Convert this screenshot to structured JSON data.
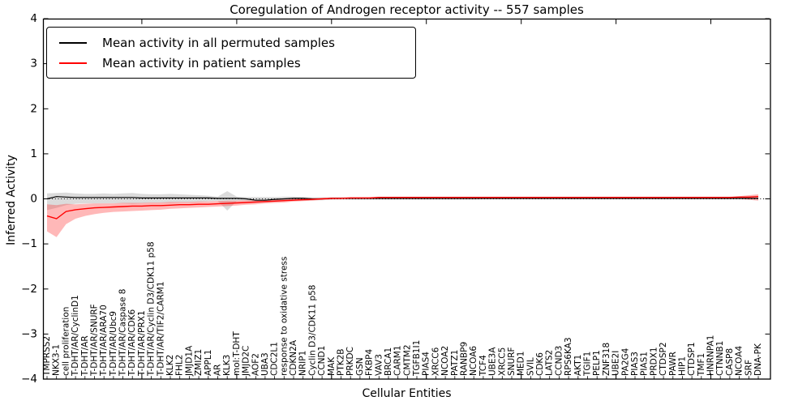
{
  "chart_data": {
    "type": "line",
    "title": "Coregulation of Androgen receptor activity -- 557 samples",
    "xlabel": "Cellular Entities",
    "ylabel": "Inferred Activity",
    "ylim": [
      -4,
      4
    ],
    "yticks": [
      4,
      3,
      2,
      1,
      0,
      -1,
      -2,
      -3,
      -4
    ],
    "x_major_tick_every": 10,
    "grid": false,
    "zero_line_style": "dotted",
    "legend_position": "upper left",
    "categories": [
      "TMPRSS2",
      "NKX3-1",
      "cell proliferation",
      "T-DHT/AR/CyclinD1",
      "T-DHT/AR",
      "T-DHT/AR/SNURF",
      "T-DHT/AR/ARA70",
      "T-DHT/AR/Ubc9",
      "T-DHT/AR/Caspase 8",
      "T-DHT/AR/CDK6",
      "T-DHT/AR/PRX1",
      "T-DHT/AR/Cyclin D3/CDK11 p58",
      "T-DHT/AR/TIF2/CARM1",
      "KLK2",
      "FHL2",
      "JMJD1A",
      "ZMIZ1",
      "APPL1",
      "AR",
      "KLK3",
      "mol:T-DHT",
      "JMJD2C",
      "AOF2",
      "UBA3",
      "CDC2L1",
      "response to oxidative stress",
      "CDKN2A",
      "NRIP1",
      "Cyclin D3/CDK11 p58",
      "CCND1",
      "MAK",
      "PTK2B",
      "PRKDC",
      "GSN",
      "FKBP4",
      "VAV3",
      "BRCA1",
      "CARM1",
      "CMTM2",
      "TGFB1I1",
      "PIAS4",
      "XRCC6",
      "NCOA2",
      "PATZ1",
      "RANBP9",
      "NCOA6",
      "TCF4",
      "UBE3A",
      "XRCC5",
      "SNURF",
      "MED1",
      "SVIL",
      "CDK6",
      "LATS2",
      "CCND3",
      "RPS6KA3",
      "AKT1",
      "TGIF1",
      "PELP1",
      "ZNF318",
      "UBE2I",
      "PA2G4",
      "PIAS3",
      "PIAS1",
      "PRDX1",
      "CTDSP2",
      "PAWR",
      "HIP1",
      "CTDSP1",
      "TMF1",
      "HNRNPA1",
      "CTNNB1",
      "CASP8",
      "NCOA4",
      "SRF",
      "DNA-PK"
    ],
    "series": [
      {
        "key": "permuted",
        "name": "Mean activity in all permuted samples",
        "color": "#000000",
        "band_color": "#999999",
        "band_opacity": 0.35,
        "values": [
          0.0,
          0.05,
          0.04,
          0.03,
          0.03,
          0.03,
          0.03,
          0.03,
          0.03,
          0.03,
          0.02,
          0.02,
          0.02,
          0.02,
          0.02,
          0.02,
          0.02,
          0.02,
          0.01,
          0.01,
          0.01,
          0.0,
          -0.03,
          -0.03,
          -0.01,
          0.0,
          0.01,
          0.01,
          0.0,
          0.0,
          0.01,
          0.01,
          0.01,
          0.01,
          0.01,
          0.01,
          0.01,
          0.01,
          0.01,
          0.01,
          0.01,
          0.01,
          0.01,
          0.01,
          0.01,
          0.01,
          0.01,
          0.01,
          0.01,
          0.01,
          0.01,
          0.01,
          0.01,
          0.01,
          0.01,
          0.01,
          0.01,
          0.01,
          0.01,
          0.01,
          0.01,
          0.01,
          0.01,
          0.01,
          0.01,
          0.01,
          0.01,
          0.01,
          0.01,
          0.01,
          0.01,
          0.01,
          0.01,
          0.01,
          0.01,
          0.01
        ],
        "band_upper": [
          0.12,
          0.13,
          0.14,
          0.12,
          0.11,
          0.11,
          0.12,
          0.11,
          0.12,
          0.13,
          0.11,
          0.1,
          0.1,
          0.11,
          0.1,
          0.09,
          0.08,
          0.07,
          0.05,
          0.17,
          0.05,
          0.04,
          0.04,
          0.04,
          0.04,
          0.05,
          0.05,
          0.04,
          0.03,
          0.03,
          0.03,
          0.03,
          0.03,
          0.03,
          0.03,
          0.03,
          0.03,
          0.03,
          0.03,
          0.03,
          0.03,
          0.03,
          0.03,
          0.03,
          0.03,
          0.03,
          0.02,
          0.02,
          0.02,
          0.02,
          0.02,
          0.02,
          0.02,
          0.02,
          0.02,
          0.02,
          0.02,
          0.02,
          0.02,
          0.02,
          0.02,
          0.02,
          0.02,
          0.02,
          0.02,
          0.02,
          0.02,
          0.02,
          0.02,
          0.02,
          0.02,
          0.02,
          0.02,
          0.02,
          0.02,
          0.02
        ],
        "band_lower": [
          -0.25,
          -0.2,
          -0.14,
          -0.11,
          -0.1,
          -0.1,
          -0.1,
          -0.1,
          -0.1,
          -0.11,
          -0.1,
          -0.09,
          -0.09,
          -0.09,
          -0.08,
          -0.08,
          -0.07,
          -0.06,
          -0.05,
          -0.26,
          -0.05,
          -0.05,
          -0.06,
          -0.05,
          -0.04,
          -0.04,
          -0.04,
          -0.04,
          -0.03,
          -0.03,
          -0.02,
          -0.02,
          -0.02,
          -0.02,
          -0.02,
          -0.02,
          -0.02,
          -0.02,
          -0.02,
          -0.02,
          -0.02,
          -0.02,
          -0.02,
          -0.02,
          -0.02,
          -0.02,
          -0.01,
          -0.01,
          -0.01,
          -0.01,
          -0.01,
          -0.01,
          -0.01,
          -0.01,
          -0.01,
          -0.01,
          -0.01,
          -0.01,
          -0.01,
          -0.01,
          -0.01,
          -0.01,
          -0.01,
          -0.01,
          -0.01,
          -0.01,
          -0.01,
          -0.01,
          -0.01,
          -0.01,
          -0.01,
          -0.01,
          -0.01,
          -0.01,
          -0.01,
          -0.01
        ]
      },
      {
        "key": "patient",
        "name": "Mean activity in patient samples",
        "color": "#ff0000",
        "band_color": "#ff3333",
        "band_opacity": 0.35,
        "values": [
          -0.38,
          -0.44,
          -0.28,
          -0.24,
          -0.22,
          -0.2,
          -0.19,
          -0.18,
          -0.17,
          -0.16,
          -0.16,
          -0.15,
          -0.15,
          -0.14,
          -0.13,
          -0.13,
          -0.12,
          -0.12,
          -0.11,
          -0.1,
          -0.09,
          -0.08,
          -0.07,
          -0.06,
          -0.05,
          -0.04,
          -0.03,
          -0.02,
          -0.01,
          0.0,
          0.01,
          0.01,
          0.02,
          0.02,
          0.02,
          0.03,
          0.03,
          0.03,
          0.03,
          0.03,
          0.03,
          0.03,
          0.03,
          0.03,
          0.03,
          0.03,
          0.03,
          0.03,
          0.03,
          0.03,
          0.03,
          0.03,
          0.03,
          0.03,
          0.03,
          0.03,
          0.03,
          0.03,
          0.03,
          0.03,
          0.03,
          0.03,
          0.03,
          0.03,
          0.03,
          0.03,
          0.03,
          0.03,
          0.03,
          0.03,
          0.03,
          0.03,
          0.03,
          0.04,
          0.04,
          0.05
        ],
        "band_upper": [
          -0.12,
          -0.14,
          -0.11,
          -0.12,
          -0.11,
          -0.1,
          -0.1,
          -0.1,
          -0.09,
          -0.09,
          -0.09,
          -0.08,
          -0.08,
          -0.07,
          -0.07,
          -0.07,
          -0.06,
          -0.06,
          -0.05,
          -0.04,
          -0.04,
          -0.03,
          -0.03,
          -0.02,
          -0.02,
          -0.01,
          0.0,
          0.01,
          0.01,
          0.02,
          0.03,
          0.03,
          0.04,
          0.04,
          0.04,
          0.05,
          0.05,
          0.05,
          0.05,
          0.05,
          0.05,
          0.05,
          0.05,
          0.05,
          0.05,
          0.05,
          0.05,
          0.05,
          0.05,
          0.05,
          0.05,
          0.05,
          0.05,
          0.05,
          0.05,
          0.05,
          0.05,
          0.05,
          0.05,
          0.05,
          0.05,
          0.05,
          0.05,
          0.05,
          0.05,
          0.05,
          0.05,
          0.05,
          0.05,
          0.05,
          0.05,
          0.05,
          0.05,
          0.06,
          0.08,
          0.1
        ],
        "band_lower": [
          -0.72,
          -0.85,
          -0.56,
          -0.44,
          -0.38,
          -0.34,
          -0.31,
          -0.29,
          -0.28,
          -0.27,
          -0.26,
          -0.25,
          -0.24,
          -0.22,
          -0.21,
          -0.2,
          -0.19,
          -0.18,
          -0.17,
          -0.16,
          -0.15,
          -0.13,
          -0.12,
          -0.1,
          -0.09,
          -0.08,
          -0.06,
          -0.05,
          -0.04,
          -0.02,
          -0.01,
          0.0,
          0.0,
          0.01,
          0.01,
          0.01,
          0.01,
          0.01,
          0.01,
          0.01,
          0.01,
          0.01,
          0.01,
          0.01,
          0.01,
          0.01,
          0.01,
          0.01,
          0.01,
          0.01,
          0.01,
          0.01,
          0.01,
          0.01,
          0.01,
          0.01,
          0.01,
          0.01,
          0.01,
          0.01,
          0.01,
          0.01,
          0.01,
          0.01,
          0.01,
          0.01,
          0.01,
          0.01,
          0.01,
          0.01,
          0.01,
          0.01,
          0.01,
          0.0,
          -0.02,
          -0.04
        ]
      }
    ]
  }
}
